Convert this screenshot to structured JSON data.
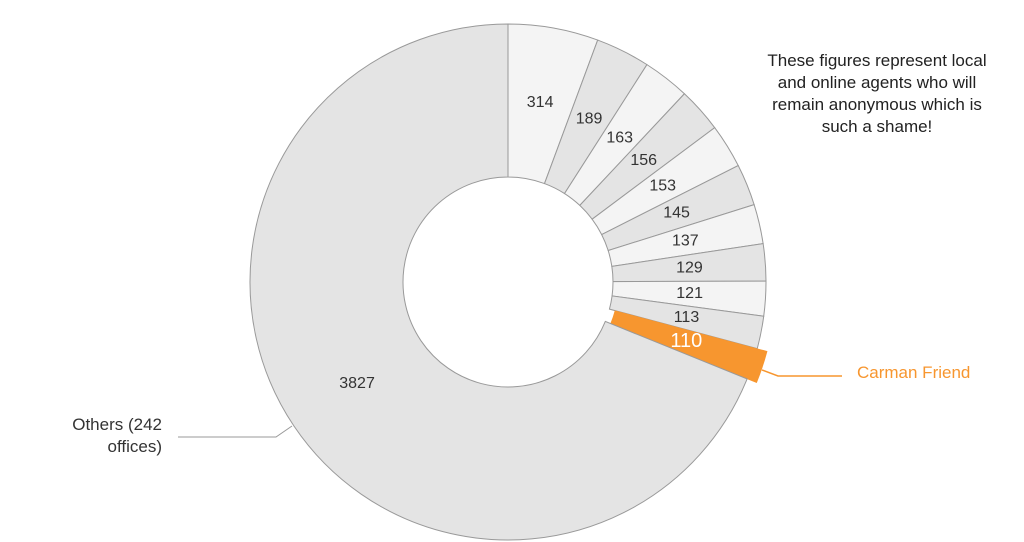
{
  "chart_data": {
    "type": "pie",
    "annotation": "These figures represent local and online agents who will remain anonymous which is such a shame!",
    "categories": [
      null,
      null,
      null,
      null,
      null,
      null,
      null,
      null,
      null,
      null,
      "Carman Friend",
      "Others (242 offices)"
    ],
    "values": [
      314,
      189,
      163,
      156,
      153,
      145,
      137,
      129,
      121,
      113,
      110,
      3827
    ],
    "colors": [
      "#f4f4f4",
      "#e4e4e4",
      "#f4f4f4",
      "#e4e4e4",
      "#f4f4f4",
      "#e4e4e4",
      "#f4f4f4",
      "#e4e4e4",
      "#f4f4f4",
      "#e4e4e4",
      "#f7962f",
      "#e4e4e4"
    ]
  }
}
